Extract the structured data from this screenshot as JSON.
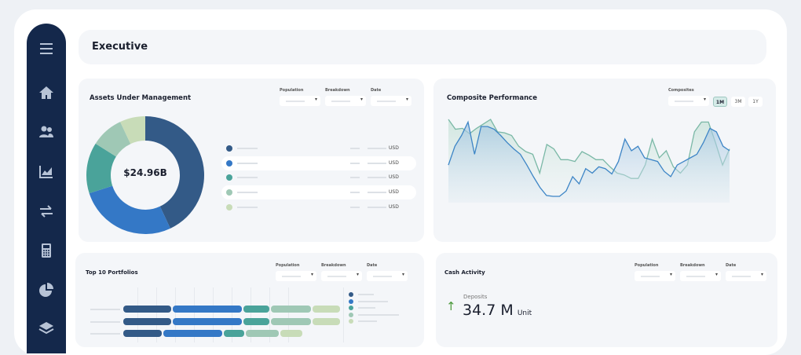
{
  "header": {
    "title": "Executive"
  },
  "sidebar": {
    "items": [
      {
        "icon": "menu-icon"
      },
      {
        "icon": "home-icon"
      },
      {
        "icon": "users-icon"
      },
      {
        "icon": "area-chart-icon"
      },
      {
        "icon": "transfer-icon"
      },
      {
        "icon": "calculator-icon"
      },
      {
        "icon": "pie-chart-icon"
      },
      {
        "icon": "layers-icon"
      }
    ]
  },
  "colors": {
    "c1": "#335a87",
    "c2": "#3478c6",
    "c3": "#4aa39a",
    "c4": "#9fc8b5",
    "c5": "#c8dcb8",
    "sidebar": "#14284b",
    "up": "#4c9a3c"
  },
  "filters": {
    "population": "Population",
    "breakdown": "Breakdown",
    "date": "Date",
    "composites": "Composites"
  },
  "aum": {
    "title": "Assets Under Management",
    "total": "$24.96B",
    "legend_unit": "USD",
    "legend_count": 5
  },
  "composite": {
    "title": "Composite Performance",
    "ranges": [
      "1M",
      "3M",
      "1Y"
    ],
    "active_range": "1M"
  },
  "top10": {
    "title": "Top 10 Portfolios"
  },
  "cash": {
    "title": "Cash Activity",
    "label": "Deposits",
    "value": "34.7 M",
    "unit": "Unit",
    "trend": "up"
  },
  "chart_data": [
    {
      "type": "pie",
      "variant": "donut",
      "values": [
        43,
        27,
        14,
        9,
        7
      ],
      "center_label": "$24.96B"
    },
    {
      "type": "area",
      "series": [
        {
          "values": [
            93,
            82,
            83,
            77,
            83,
            88,
            93,
            79,
            78,
            75,
            63,
            57,
            54,
            33,
            65,
            60,
            48,
            48,
            46,
            57,
            53,
            48,
            48,
            40,
            33,
            31,
            27,
            27,
            42,
            71,
            50,
            58,
            40,
            33,
            42,
            79,
            90,
            90,
            67,
            42,
            60
          ]
        },
        {
          "values": [
            42,
            63,
            75,
            90,
            54,
            85,
            85,
            82,
            75,
            67,
            60,
            54,
            42,
            29,
            17,
            8,
            7,
            7,
            13,
            29,
            21,
            38,
            33,
            40,
            38,
            32,
            46,
            71,
            58,
            63,
            50,
            48,
            46,
            35,
            29,
            42,
            46,
            50,
            54,
            67,
            83,
            79,
            63,
            58
          ]
        }
      ],
      "ylim": [
        0,
        100
      ],
      "grid": false
    },
    {
      "type": "bar",
      "orientation": "horizontal",
      "stacked": true,
      "rows": [
        [
          61,
          88,
          33,
          51,
          35
        ],
        [
          61,
          88,
          33,
          51,
          35
        ],
        [
          49,
          75,
          26,
          42,
          28
        ]
      ]
    }
  ]
}
